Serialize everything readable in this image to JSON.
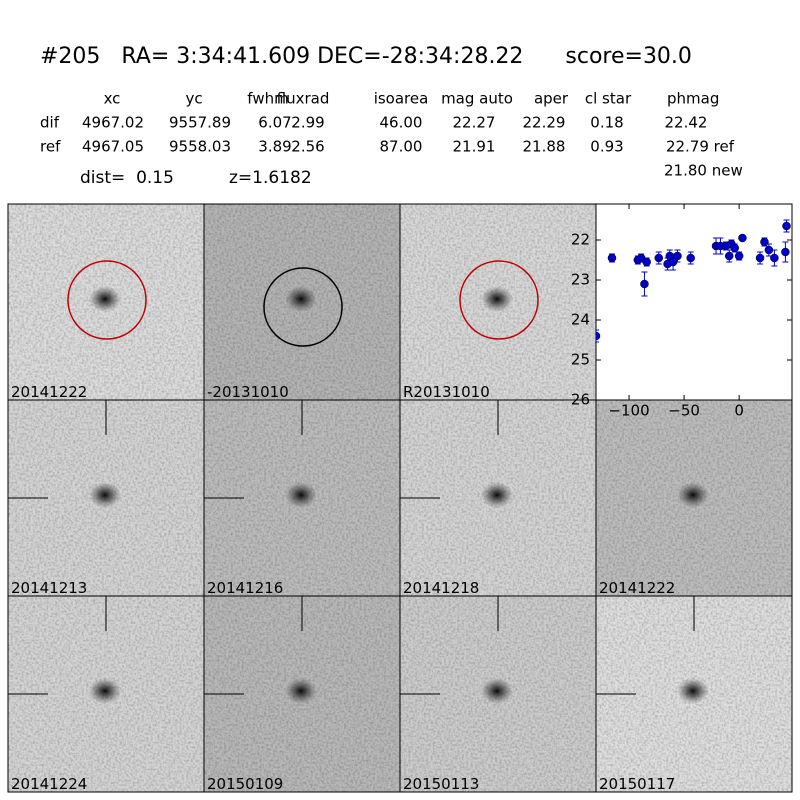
{
  "header": {
    "title": "#205   RA= 3:34:41.609 DEC=-28:34:28.22      score=30.0",
    "dist": "dist=  0.15",
    "z": "z=1.6182",
    "new": "21.80 new"
  },
  "table": {
    "columns": [
      "xc",
      "yc",
      "fwhm",
      "fluxrad",
      "isoarea",
      "mag auto",
      "aper",
      "cl star",
      "phmag"
    ],
    "rows": [
      {
        "label": "dif",
        "cells": [
          "4967.02",
          "9557.89",
          "6.07",
          "2.99",
          "46.00",
          "22.27",
          "22.29",
          "0.18",
          "22.42"
        ]
      },
      {
        "label": "ref",
        "cells": [
          "4967.05",
          "9558.03",
          "3.89",
          "2.56",
          "87.00",
          "21.91",
          "21.88",
          "0.93",
          "22.79 ref"
        ]
      }
    ]
  },
  "panels": [
    {
      "label": "20141222",
      "shade": "#dcdcdc",
      "circle": "#c00000"
    },
    {
      "label": "-20131010",
      "shade": "#b4b4b4",
      "circle": "#000000"
    },
    {
      "label": "R20131010",
      "shade": "#d8d8d8",
      "circle": "#c00000"
    },
    {
      "label": "20141213",
      "shade": "#d4d4d4",
      "crosshair": true
    },
    {
      "label": "20141216",
      "shade": "#bcbcbc",
      "crosshair": true
    },
    {
      "label": "20141218",
      "shade": "#d4d4d4",
      "crosshair": true
    },
    {
      "label": "20141222",
      "shade": "#bdbdbd",
      "label_color": "#ff0000"
    },
    {
      "label": "20141224",
      "shade": "#d4d4d4",
      "crosshair": true
    },
    {
      "label": "20150109",
      "shade": "#b8b8b8",
      "crosshair": true
    },
    {
      "label": "20150113",
      "shade": "#cccccc",
      "crosshair": true
    },
    {
      "label": "20150117",
      "shade": "#dedede",
      "crosshair": true
    }
  ],
  "chart_data": {
    "type": "scatter",
    "color": "#0000cc",
    "x": [
      -130,
      -115.5,
      -92,
      -89,
      -86,
      -84,
      -73,
      -65,
      -63,
      -60,
      -56,
      -44,
      -21,
      -17,
      -12,
      -9,
      -7,
      -4,
      0,
      3,
      19,
      23,
      27,
      32,
      42,
      43
    ],
    "values": [
      24.4,
      22.45,
      22.5,
      22.45,
      23.1,
      22.55,
      22.45,
      22.6,
      22.4,
      22.55,
      22.4,
      22.45,
      22.15,
      22.15,
      22.15,
      22.4,
      22.1,
      22.2,
      22.4,
      21.95,
      22.45,
      22.05,
      22.25,
      22.45,
      22.3,
      21.65
    ],
    "errors": [
      0.15,
      0.1,
      0.1,
      0.1,
      0.3,
      0.1,
      0.15,
      0.15,
      0.15,
      0.2,
      0.15,
      0.15,
      0.2,
      0.2,
      0.1,
      0.15,
      0.1,
      0.1,
      0.1,
      0.05,
      0.15,
      0.1,
      0.15,
      0.2,
      0.25,
      0.15
    ],
    "xlim": [
      -130,
      48
    ],
    "ylim": [
      26,
      21.1
    ],
    "xticks": [
      {
        "value": -100,
        "label": "−100"
      },
      {
        "value": -50,
        "label": "−50"
      },
      0
    ],
    "yticks": [
      22,
      23,
      24,
      25,
      26
    ]
  }
}
